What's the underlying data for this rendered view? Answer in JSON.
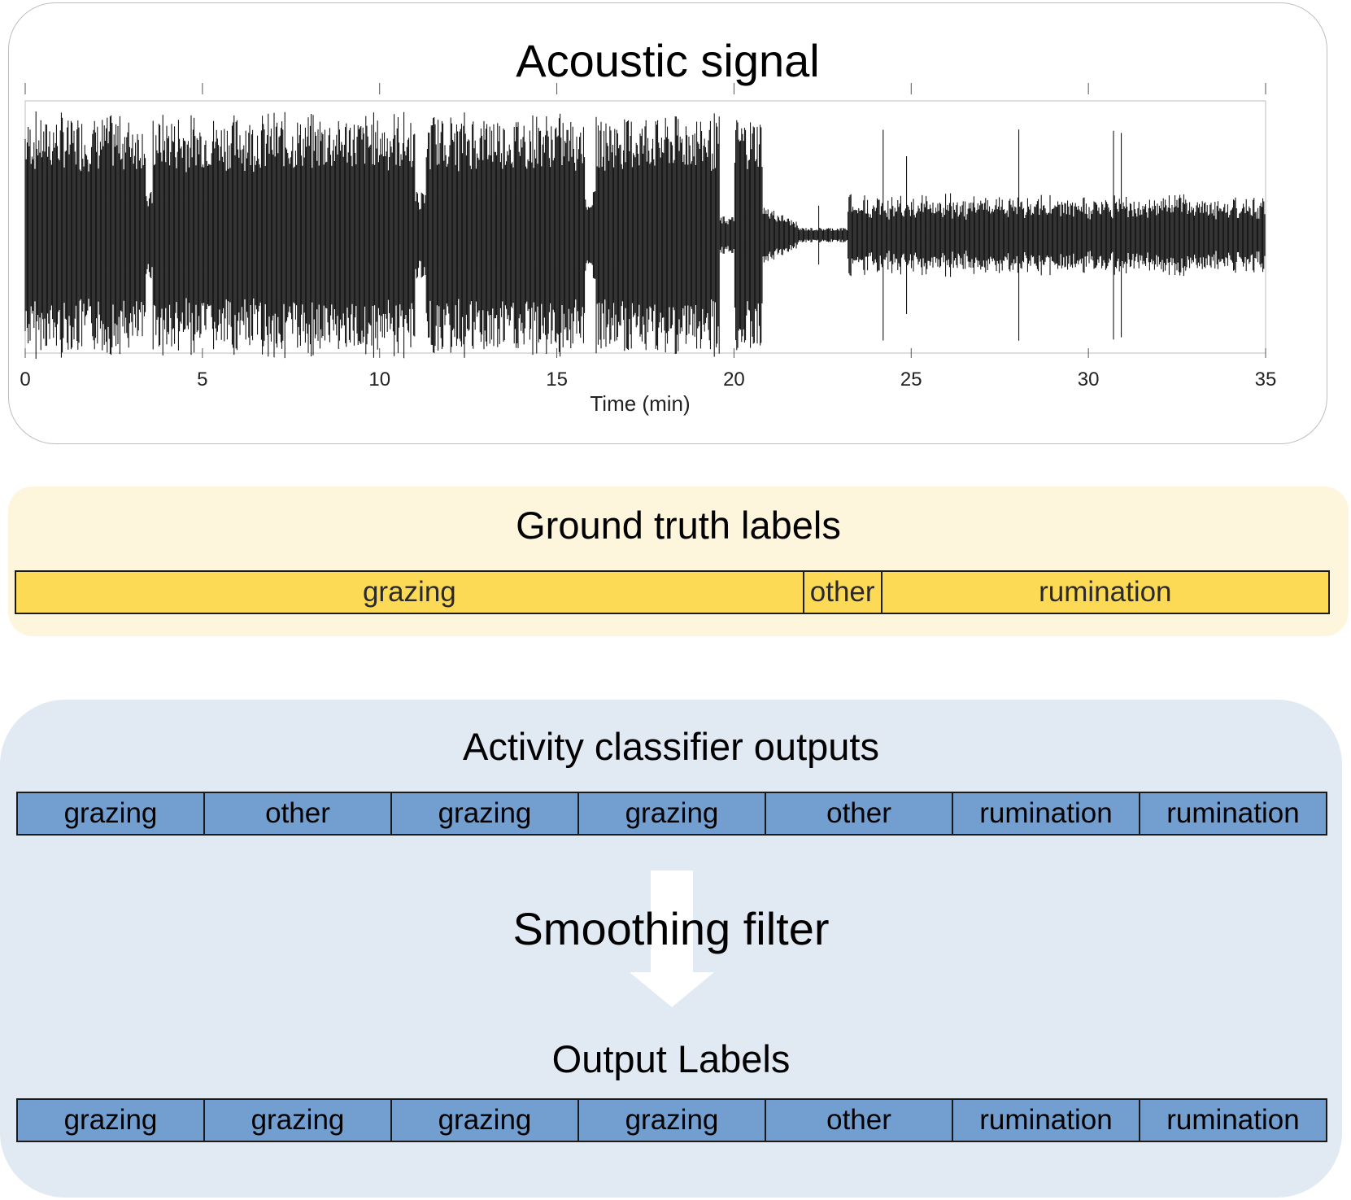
{
  "acoustic_panel": {
    "title": "Acoustic signal",
    "x_axis": {
      "label": "Time (min)",
      "range": [
        0,
        35
      ],
      "ticks": [
        "0",
        "5",
        "10",
        "15",
        "20",
        "25",
        "30",
        "35"
      ]
    },
    "signal_colors": {
      "waveform": "#000000",
      "frame": "#bdbdbd"
    }
  },
  "ground_truth_panel": {
    "title": "Ground truth labels",
    "segments": [
      {
        "label": "grazing",
        "start_min": 0,
        "end_min": 21.2
      },
      {
        "label": "other",
        "start_min": 21.2,
        "end_min": 23.3
      },
      {
        "label": "rumination",
        "start_min": 23.3,
        "end_min": 35.3
      }
    ],
    "colors": {
      "background": "#fdf5dc",
      "bar": "#fdda55"
    }
  },
  "classifier_panel": {
    "title": "Activity classifier outputs",
    "classifier_outputs": [
      "grazing",
      "other",
      "grazing",
      "grazing",
      "other",
      "rumination",
      "rumination"
    ],
    "filter_label": "Smoothing filter",
    "output_title": "Output Labels",
    "output_labels": [
      "grazing",
      "grazing",
      "grazing",
      "grazing",
      "other",
      "rumination",
      "rumination"
    ],
    "colors": {
      "background": "#e1e9f3",
      "bar": "#729fcf",
      "arrow": "#ffffff"
    }
  }
}
